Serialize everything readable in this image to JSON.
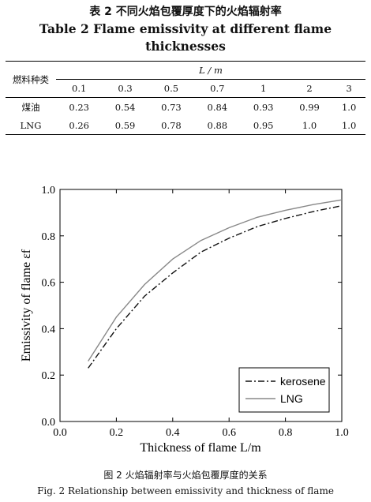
{
  "table": {
    "caption_cn": "表 2   不同火焰包覆厚度下的火焰辐射率",
    "caption_en_line1": "Table 2   Flame emissivity at different flame",
    "caption_en_line2": "thicknesses",
    "row_header": "燃料种类",
    "col_group_header": "L / m",
    "columns": [
      "0.1",
      "0.3",
      "0.5",
      "0.7",
      "1",
      "2",
      "3"
    ],
    "rows": [
      {
        "fuel": "煤油",
        "values": [
          "0.23",
          "0.54",
          "0.73",
          "0.84",
          "0.93",
          "0.99",
          "1.0"
        ]
      },
      {
        "fuel": "LNG",
        "values": [
          "0.26",
          "0.59",
          "0.78",
          "0.88",
          "0.95",
          "1.0",
          "1.0"
        ]
      }
    ]
  },
  "chart_data": {
    "type": "line",
    "xlabel": "Thickness of flame L/m",
    "ylabel": "Emissivity of flame εf",
    "xlim": [
      0.0,
      1.0
    ],
    "ylim": [
      0.0,
      1.0
    ],
    "xticks": [
      "0.0",
      "0.2",
      "0.4",
      "0.6",
      "0.8",
      "1.0"
    ],
    "yticks": [
      "0.0",
      "0.2",
      "0.4",
      "0.6",
      "0.8",
      "1.0"
    ],
    "grid": false,
    "legend_position": "bottom-right",
    "series": [
      {
        "name": "kerosene",
        "style": "dash-dot",
        "color": "#111111",
        "x": [
          0.1,
          0.2,
          0.3,
          0.4,
          0.5,
          0.6,
          0.7,
          0.8,
          0.9,
          1.0
        ],
        "y": [
          0.23,
          0.4,
          0.54,
          0.64,
          0.73,
          0.79,
          0.84,
          0.875,
          0.905,
          0.93
        ]
      },
      {
        "name": "LNG",
        "style": "solid",
        "color": "#888888",
        "x": [
          0.1,
          0.2,
          0.3,
          0.4,
          0.5,
          0.6,
          0.7,
          0.8,
          0.9,
          1.0
        ],
        "y": [
          0.26,
          0.45,
          0.59,
          0.7,
          0.78,
          0.835,
          0.88,
          0.91,
          0.935,
          0.955
        ]
      }
    ]
  },
  "figure": {
    "caption_cn": "图 2   火焰辐射率与火焰包覆厚度的关系",
    "caption_en": "Fig. 2   Relationship between emissivity and thickness of flame"
  }
}
